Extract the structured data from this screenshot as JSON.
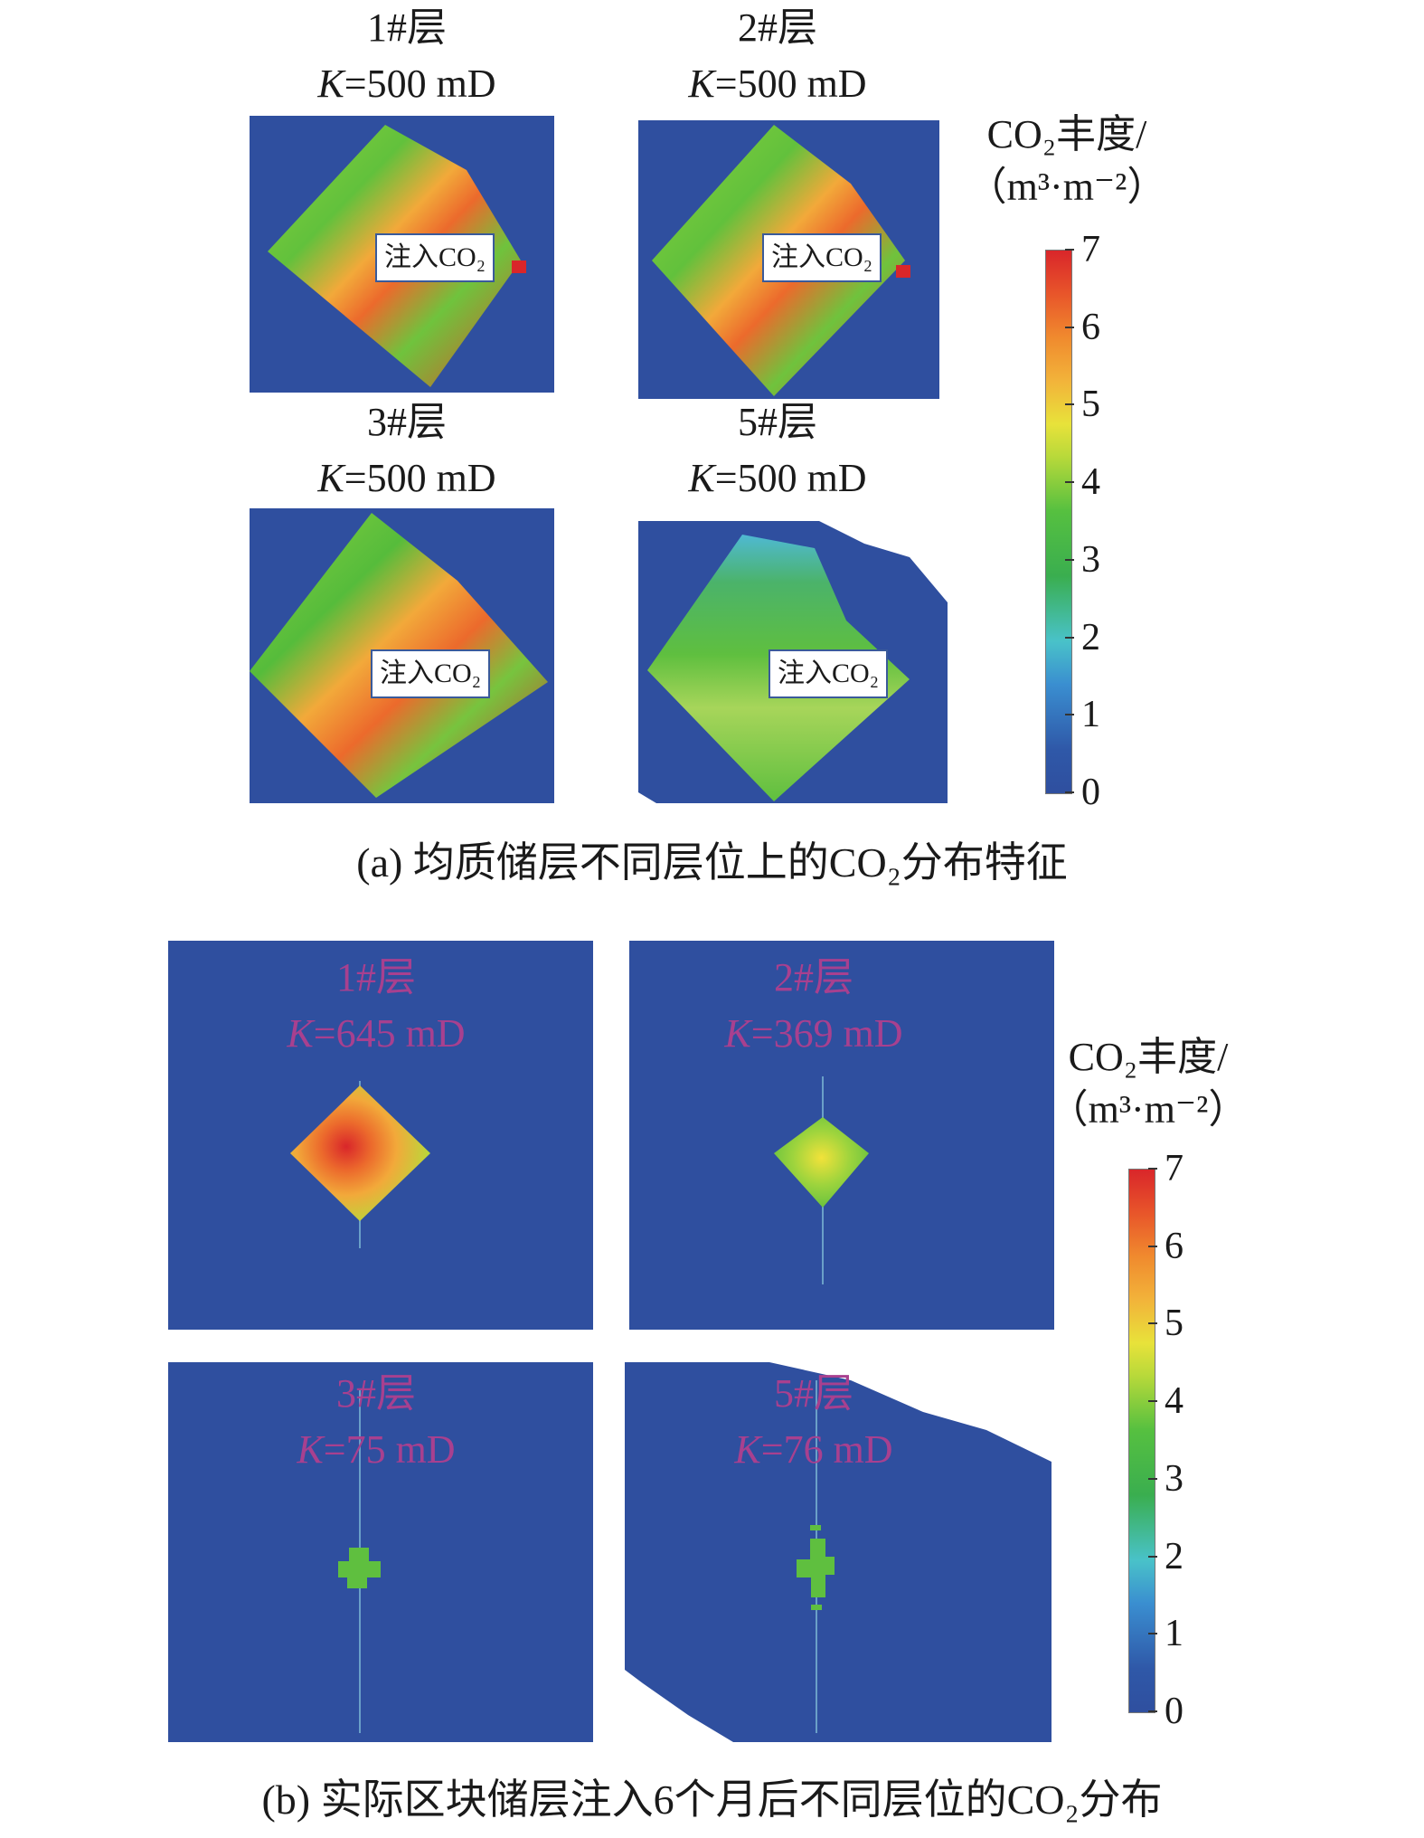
{
  "chart_data": [
    {
      "type": "heatmap",
      "caption": "(a) 均质储层不同层位上的CO₂分布特征",
      "colorbar": {
        "label_line1": "CO₂丰度/",
        "label_line2": "（m³·m⁻²）",
        "ticks": [
          0,
          1,
          2,
          3,
          4,
          5,
          6,
          7
        ],
        "range": [
          0,
          7
        ]
      },
      "panels": [
        {
          "layer": "1#层",
          "perm_label": "K",
          "perm_value": "=500 mD",
          "annotation": "注入CO₂",
          "max_value": 7
        },
        {
          "layer": "2#层",
          "perm_label": "K",
          "perm_value": "=500 mD",
          "annotation": "注入CO₂",
          "max_value": 7
        },
        {
          "layer": "3#层",
          "perm_label": "K",
          "perm_value": "=500 mD",
          "annotation": "注入CO₂",
          "max_value": 7
        },
        {
          "layer": "5#层",
          "perm_label": "K",
          "perm_value": "=500 mD",
          "annotation": "注入CO₂",
          "max_value": 4
        }
      ]
    },
    {
      "type": "heatmap",
      "caption": "(b) 实际区块储层注入6个月后不同层位的CO₂分布",
      "colorbar": {
        "label_line1": "CO₂丰度/",
        "label_line2": "（m³·m⁻²）",
        "ticks": [
          0,
          1,
          2,
          3,
          4,
          5,
          6,
          7
        ],
        "range": [
          0,
          7
        ]
      },
      "panels": [
        {
          "layer": "1#层",
          "perm_label": "K",
          "perm_value": "=645 mD",
          "max_value": 7
        },
        {
          "layer": "2#层",
          "perm_label": "K",
          "perm_value": "=369 mD",
          "max_value": 5
        },
        {
          "layer": "3#层",
          "perm_label": "K",
          "perm_value": "=75 mD",
          "max_value": 4
        },
        {
          "layer": "5#层",
          "perm_label": "K",
          "perm_value": "=76 mD",
          "max_value": 4
        }
      ]
    }
  ],
  "colors": {
    "background_blue": "#2f4f9f",
    "green": "#5fbf3f",
    "orange": "#f08a2e",
    "red": "#d9262a",
    "magenta_text": "#a8408f"
  }
}
